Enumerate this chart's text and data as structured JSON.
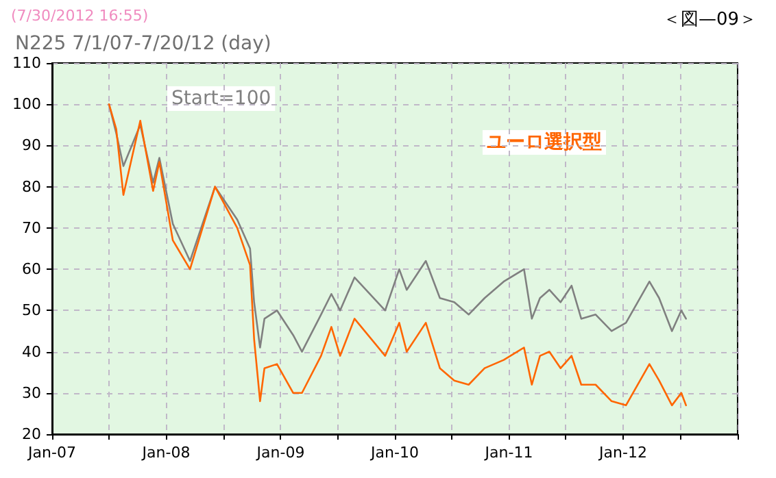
{
  "chart_data": {
    "type": "line",
    "title": "N225 7/1/07-7/20/12 (day)",
    "subtitle": "(7/30/2012 16:55)",
    "annotations": [
      "＜図—09＞",
      "Start=100"
    ],
    "x": [
      "2007-07-02",
      "2007-07-25",
      "2007-08-17",
      "2007-10-10",
      "2007-11-20",
      "2007-12-10",
      "2008-01-22",
      "2008-03-17",
      "2008-06-05",
      "2008-08-15",
      "2008-09-25",
      "2008-10-08",
      "2008-10-27",
      "2008-11-10",
      "2008-12-20",
      "2009-02-10",
      "2009-03-10",
      "2009-05-10",
      "2009-06-12",
      "2009-07-10",
      "2009-08-25",
      "2009-12-01",
      "2010-01-15",
      "2010-02-08",
      "2010-04-10",
      "2010-05-25",
      "2010-07-10",
      "2010-08-25",
      "2010-10-15",
      "2010-12-15",
      "2011-02-18",
      "2011-03-15",
      "2011-04-10",
      "2011-05-10",
      "2011-06-15",
      "2011-07-20",
      "2011-08-20",
      "2011-10-05",
      "2011-11-25",
      "2012-01-10",
      "2012-03-25",
      "2012-04-25",
      "2012-06-05",
      "2012-07-05",
      "2012-07-20"
    ],
    "series": [
      {
        "color": "#808080",
        "values": [
          100,
          93,
          85,
          95,
          81,
          87,
          71,
          62,
          80,
          72,
          65,
          52,
          41,
          48,
          50,
          44,
          40,
          49,
          54,
          50,
          58,
          50,
          60,
          55,
          62,
          53,
          52,
          49,
          53,
          57,
          60,
          48,
          53,
          55,
          52,
          56,
          48,
          49,
          45,
          47,
          57,
          53,
          45,
          50,
          48
        ]
      },
      {
        "name": "ユーロ選択型",
        "color": "#ff6600",
        "values": [
          100,
          94,
          78,
          96,
          79,
          86,
          67,
          60,
          80,
          70,
          61,
          43,
          28,
          36,
          37,
          30,
          30,
          39,
          46,
          39,
          48,
          39,
          47,
          40,
          47,
          36,
          33,
          32,
          36,
          38,
          41,
          32,
          39,
          40,
          36,
          39,
          32,
          32,
          28,
          27,
          37,
          33,
          27,
          30,
          27
        ]
      }
    ],
    "xlim": [
      "2007-01-01",
      "2013-01-01"
    ],
    "xticks": [
      {
        "value": "2007-01-01",
        "label": "Jan-07"
      },
      {
        "value": "2007-07-01",
        "label": null
      },
      {
        "value": "2008-01-01",
        "label": "Jan-08"
      },
      {
        "value": "2008-07-01",
        "label": null
      },
      {
        "value": "2009-01-01",
        "label": "Jan-09"
      },
      {
        "value": "2009-07-01",
        "label": null
      },
      {
        "value": "2010-01-01",
        "label": "Jan-10"
      },
      {
        "value": "2010-07-01",
        "label": null
      },
      {
        "value": "2011-01-01",
        "label": "Jan-11"
      },
      {
        "value": "2011-07-01",
        "label": null
      },
      {
        "value": "2012-01-01",
        "label": "Jan-12"
      },
      {
        "value": "2012-07-01",
        "label": null
      },
      {
        "value": "2013-01-01",
        "label": null
      }
    ],
    "ylim": [
      20,
      110
    ],
    "yticks": [
      20,
      30,
      40,
      50,
      60,
      70,
      80,
      90,
      100,
      110
    ],
    "grid": true,
    "legend": false,
    "marker": "none",
    "line_style": "solid"
  }
}
